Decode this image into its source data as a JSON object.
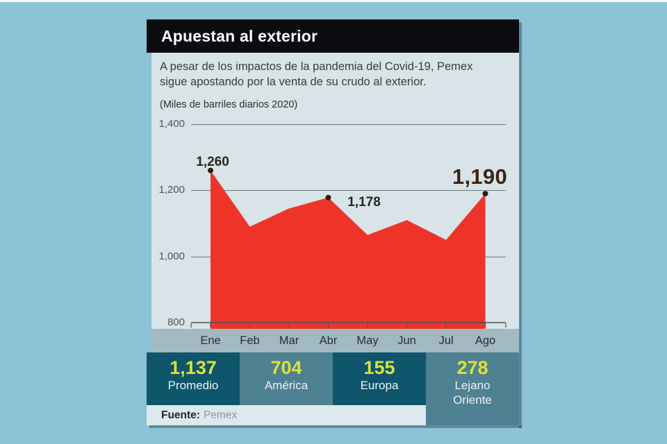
{
  "header": {
    "title": "Apuestan al exterior"
  },
  "intro": {
    "line1": "A pesar de los impactos de la pandemia del Covid-19, Pemex",
    "line2": "sigue apostando por la venta de su crudo al exterior.",
    "units": "(Miles de barriles diarios 2020)"
  },
  "chart_data": {
    "type": "area",
    "title": "Apuestan al exterior",
    "subtitle": "A pesar de los impactos de la pandemia del Covid-19, Pemex sigue apostando por la venta de su crudo al exterior.",
    "units_note": "(Miles de barriles diarios 2020)",
    "categories": [
      "Ene",
      "Feb",
      "Mar",
      "Abr",
      "May",
      "Jun",
      "Jul",
      "Ago"
    ],
    "values": [
      1260,
      1090,
      1145,
      1178,
      1065,
      1110,
      1050,
      1190
    ],
    "ylim": [
      800,
      1400
    ],
    "yticks": [
      "1,400",
      "1,200",
      "1,000",
      "800"
    ],
    "ytick_values": [
      1400,
      1200,
      1000,
      800
    ],
    "grid": true,
    "legend": "none",
    "area_color": "#ee3429",
    "marker_color": "#2c1d13",
    "annotations": [
      {
        "index": 0,
        "month": "Ene",
        "label": "1,260",
        "emphasis": false
      },
      {
        "index": 3,
        "month": "Abr",
        "label": "1,178",
        "emphasis": false
      },
      {
        "index": 7,
        "month": "Ago",
        "label": "1,190",
        "emphasis": true
      }
    ]
  },
  "stats": {
    "items": [
      {
        "value": "1,137",
        "label": "Promedio",
        "tone": "dark"
      },
      {
        "value": "704",
        "label": "América",
        "tone": "light"
      },
      {
        "value": "155",
        "label": "Europa",
        "tone": "dark"
      },
      {
        "value": "278",
        "label": "Lejano Oriente",
        "tone": "light"
      }
    ]
  },
  "source": {
    "label": "Fuente:",
    "value": "Pemex"
  },
  "colors": {
    "background": "#8cc3d7",
    "card_body": "#d8e4e8",
    "header_bg": "#0b0c10",
    "area_red": "#ee3429",
    "teal_dark": "#0f566c",
    "teal_light": "#4e8191",
    "stat_number_yellow": "#dce23a",
    "month_band": "#a3b9c2",
    "annotation_dark_brown": "#3d2315"
  }
}
